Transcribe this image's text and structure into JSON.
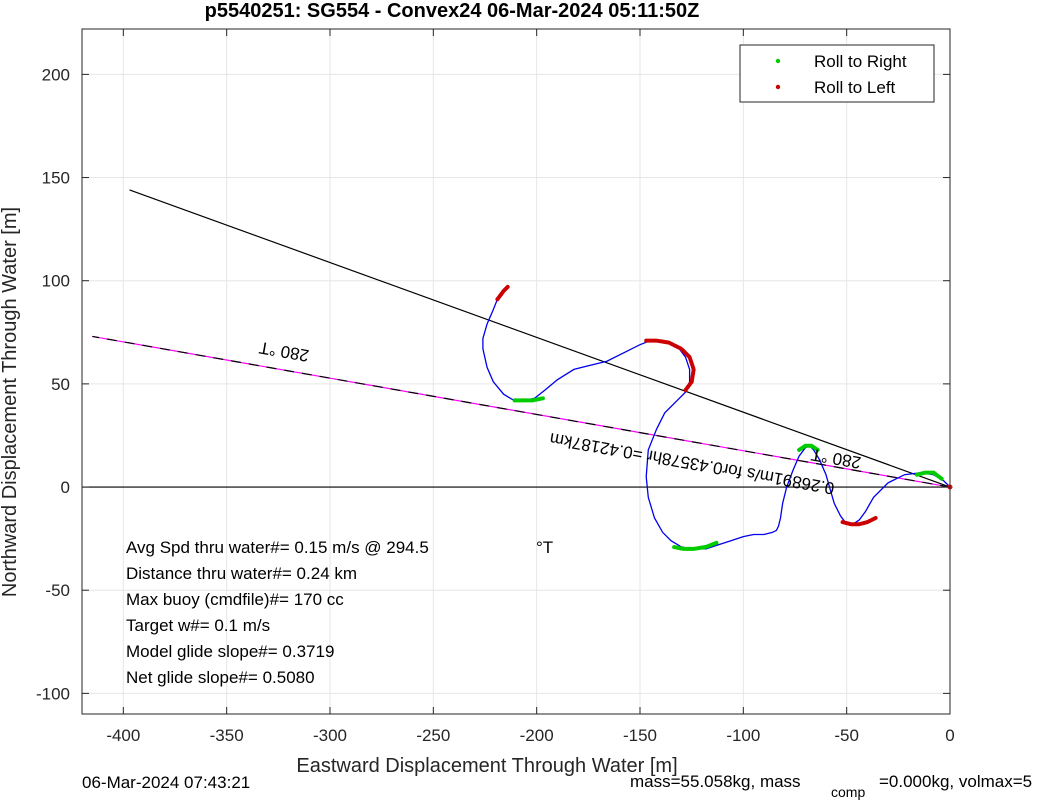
{
  "chart_data": {
    "type": "line",
    "title": "p5540251: SG554 - Convex24 06-Mar-2024 05:11:50Z",
    "xlabel": "Eastward Displacement Through Water [m]",
    "ylabel": "Northward Displacement Through Water [m]",
    "xlim": [
      -420,
      0
    ],
    "ylim": [
      -110,
      222
    ],
    "xticks": [
      -400,
      -350,
      -300,
      -250,
      -200,
      -150,
      -100,
      -50,
      0
    ],
    "yticks": [
      -100,
      -50,
      0,
      50,
      100,
      150,
      200
    ],
    "grid": true,
    "legend_position": "top-right",
    "legend": [
      {
        "label": "Roll to Right",
        "color": "#00cc00"
      },
      {
        "label": "Roll to Left",
        "color": "#cc0000"
      }
    ],
    "lines": [
      {
        "kind": "heading",
        "color": "#000000",
        "x": [
          0,
          -397
        ],
        "y": [
          0,
          144
        ]
      },
      {
        "kind": "net-displacement",
        "color": "#ff00ff",
        "dashed_overlay": true,
        "x": [
          0,
          -415
        ],
        "y": [
          0,
          73
        ]
      },
      {
        "kind": "zero-line",
        "color": "#000000",
        "x": [
          -420,
          0
        ],
        "y": [
          0,
          0
        ]
      }
    ],
    "track": {
      "color": "#0000ee",
      "x": [
        0,
        -3,
        -8,
        -14,
        -22,
        -30,
        -37,
        -41,
        -44,
        -47,
        -50,
        -53,
        -56,
        -58,
        -60,
        -63,
        -66,
        -68,
        -70,
        -73,
        -76,
        -79,
        -81,
        -82,
        -83,
        -84,
        -86,
        -90,
        -95,
        -100,
        -106,
        -112,
        -118,
        -125,
        -130,
        -135,
        -139,
        -143,
        -146,
        -147,
        -146,
        -142,
        -138,
        -132,
        -128,
        -126,
        -126,
        -128,
        -131,
        -135,
        -140,
        -145,
        -150,
        -158,
        -166,
        -174,
        -182,
        -190,
        -196,
        -201,
        -206,
        -211,
        -216,
        -221,
        -224,
        -226,
        -226,
        -224,
        -221,
        -219,
        -216,
        -214
      ],
      "y": [
        0,
        3,
        6,
        7,
        6,
        2,
        -5,
        -12,
        -16,
        -18,
        -18,
        -14,
        -8,
        -1,
        6,
        13,
        18,
        20,
        19,
        15,
        8,
        0,
        -8,
        -15,
        -19,
        -21,
        -22,
        -23,
        -23,
        -24,
        -26,
        -28,
        -30,
        -30,
        -29,
        -26,
        -22,
        -15,
        -5,
        5,
        18,
        28,
        36,
        42,
        46,
        51,
        57,
        63,
        67,
        70,
        71,
        71,
        69,
        65,
        61,
        59,
        57,
        52,
        47,
        43,
        42,
        42,
        45,
        51,
        58,
        67,
        72,
        79,
        86,
        91,
        95,
        97
      ]
    },
    "roll_segments": [
      {
        "roll": "right",
        "color": "#00cc00",
        "x": [
          -4,
          -8,
          -12,
          -16
        ],
        "y": [
          4,
          7,
          7,
          6
        ]
      },
      {
        "roll": "left",
        "color": "#cc0000",
        "x": [
          -36,
          -40,
          -44,
          -48,
          -52
        ],
        "y": [
          -15,
          -17,
          -18,
          -18,
          -17
        ]
      },
      {
        "roll": "right",
        "color": "#00cc00",
        "x": [
          -64,
          -67,
          -70,
          -73
        ],
        "y": [
          18,
          20,
          20,
          18
        ]
      },
      {
        "roll": "right",
        "color": "#00cc00",
        "x": [
          -113,
          -118,
          -124,
          -129,
          -134
        ],
        "y": [
          -27,
          -29,
          -30,
          -30,
          -29
        ]
      },
      {
        "roll": "left",
        "color": "#cc0000",
        "x": [
          -128,
          -125,
          -124,
          -126,
          -130,
          -136,
          -142,
          -147
        ],
        "y": [
          47,
          51,
          57,
          63,
          67,
          70,
          71,
          71
        ]
      },
      {
        "roll": "right",
        "color": "#00cc00",
        "x": [
          -197,
          -202,
          -206,
          -211
        ],
        "y": [
          43,
          42,
          42,
          42
        ]
      },
      {
        "roll": "left",
        "color": "#cc0000",
        "x": [
          -219,
          -216,
          -214
        ],
        "y": [
          91,
          95,
          97
        ]
      }
    ]
  },
  "annotations": {
    "heading_label": "280 °T",
    "net_label": "280 °T",
    "net_speed_label": "0.26891m/s for0.43578hr =0.42187km",
    "stats": [
      "Avg Spd thru water#=  0.15 m/s @ 294.5",
      "Distance thru water#=  0.24 km",
      "Max buoy (cmdfile)#= 170 cc",
      "Target w#= 0.1 m/s",
      "Model glide slope#= 0.3719",
      "Net glide slope#= 0.5080"
    ],
    "stats_unit": "°T"
  },
  "footer": {
    "date": "06-Mar-2024 07:43:21",
    "mass_text": "mass=55.058kg, mass",
    "comp_subscript": "comp",
    "volmax_text": "=0.000kg, volmax=5"
  }
}
